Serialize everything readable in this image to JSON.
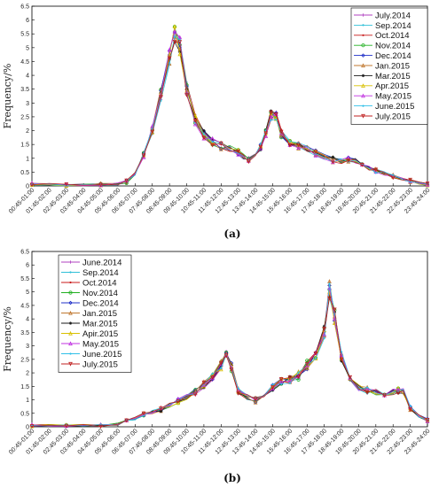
{
  "chart_data": [
    {
      "type": "line",
      "caption": "(a)",
      "ylabel": "Frequency/%",
      "xlabel": "",
      "ylim": [
        0,
        6.5
      ],
      "yticks": [
        0,
        0.5,
        1,
        1.5,
        2,
        2.5,
        3,
        3.5,
        4,
        4.5,
        5,
        5.5,
        6,
        6.5
      ],
      "legend_position": "top-right",
      "grid": false,
      "categories": [
        "00:45-01:00",
        "01:45-02:00",
        "02:45-03:00",
        "03:45-04:00",
        "04:45-05:00",
        "05:45-06:00",
        "06:45-07:00",
        "07:45-08:00",
        "08:45-09:00",
        "09:45-10:00",
        "10:45-11:00",
        "11:45-12:00",
        "12:45-13:00",
        "13:45-14:00",
        "14:45-15:00",
        "15:45-16:00",
        "16:45-17:00",
        "17:45-18:00",
        "18:45-19:00",
        "19:45-20:00",
        "20:45-21:00",
        "21:45-22:00",
        "22:45-23:00",
        "23:45-24:00"
      ],
      "x": [
        0,
        1,
        2,
        3,
        4,
        5,
        5.5,
        6,
        6.5,
        7,
        7.5,
        8,
        8.3,
        8.6,
        9,
        9.5,
        10,
        10.5,
        11,
        11.5,
        12,
        12.3,
        12.6,
        13,
        13.3,
        13.6,
        13.9,
        14.2,
        14.5,
        15,
        15.5,
        16,
        16.5,
        17,
        17.5,
        18,
        18.4,
        18.8,
        19.2,
        19.6,
        20,
        20.5,
        21,
        21.5,
        22,
        22.5,
        23
      ],
      "base": [
        0.07,
        0.05,
        0.04,
        0.04,
        0.05,
        0.07,
        0.15,
        0.45,
        1.1,
        2.0,
        3.3,
        4.7,
        5.55,
        5.1,
        3.5,
        2.4,
        1.85,
        1.6,
        1.45,
        1.35,
        1.2,
        1.05,
        0.95,
        1.1,
        1.4,
        1.9,
        2.55,
        2.5,
        1.9,
        1.6,
        1.45,
        1.35,
        1.2,
        1.05,
        0.95,
        0.9,
        0.95,
        0.9,
        0.75,
        0.65,
        0.55,
        0.45,
        0.35,
        0.25,
        0.18,
        0.1,
        0.05
      ],
      "series": [
        {
          "name": "July.2014",
          "color": "#b040c0",
          "marker": "cross"
        },
        {
          "name": "Sep.2014",
          "color": "#30c0d8",
          "marker": "dot"
        },
        {
          "name": "Oct.2014",
          "color": "#c81818",
          "marker": "dot"
        },
        {
          "name": "Nov.2014",
          "color": "#20b020",
          "marker": "circle"
        },
        {
          "name": "Dec.2014",
          "color": "#2030c8",
          "marker": "diamond"
        },
        {
          "name": "Jan.2015",
          "color": "#c07830",
          "marker": "triangle"
        },
        {
          "name": "Mar.2015",
          "color": "#1a1a1a",
          "marker": "star"
        },
        {
          "name": "Apr.2015",
          "color": "#d8c000",
          "marker": "triangle"
        },
        {
          "name": "May.2015",
          "color": "#c030e0",
          "marker": "triangle"
        },
        {
          "name": "June.2015",
          "color": "#30c0e8",
          "marker": "dot"
        },
        {
          "name": "July.2015",
          "color": "#c02020",
          "marker": "triangle-down"
        }
      ]
    },
    {
      "type": "line",
      "caption": "(b)",
      "ylabel": "Frequency/%",
      "xlabel": "",
      "ylim": [
        0,
        6.5
      ],
      "yticks": [
        0,
        0.5,
        1,
        1.5,
        2,
        2.5,
        3,
        3.5,
        4,
        4.5,
        5,
        5.5,
        6,
        6.5
      ],
      "legend_position": "top-left",
      "grid": false,
      "categories": [
        "00:45-01:00",
        "01:45-02:00",
        "02:45-03:00",
        "03:45-04:00",
        "04:45-05:00",
        "05:45-06:00",
        "06:45-07:00",
        "07:45-08:00",
        "08:45-09:00",
        "09:45-10:00",
        "10:45-11:00",
        "11:45-12:00",
        "12:45-13:00",
        "13:45-14:00",
        "14:45-15:00",
        "15:45-16:00",
        "16:45-17:00",
        "17:45-18:00",
        "18:45-19:00",
        "19:45-20:00",
        "20:45-21:00",
        "21:45-22:00",
        "22:45-23:00",
        "23:45-24:00"
      ],
      "x": [
        0,
        1,
        2,
        3,
        4,
        5,
        5.5,
        6,
        6.5,
        7,
        7.5,
        8,
        8.5,
        9,
        9.5,
        10,
        10.5,
        11,
        11.3,
        11.6,
        12,
        12.5,
        13,
        13.5,
        14,
        14.5,
        15,
        15.5,
        16,
        16.5,
        17,
        17.3,
        17.6,
        18,
        18.5,
        19,
        19.5,
        20,
        20.5,
        21,
        21.3,
        21.6,
        22,
        22.5,
        23
      ],
      "base": [
        0.05,
        0.05,
        0.05,
        0.05,
        0.05,
        0.1,
        0.2,
        0.3,
        0.45,
        0.55,
        0.65,
        0.8,
        0.95,
        1.1,
        1.3,
        1.55,
        1.85,
        2.3,
        2.75,
        2.2,
        1.3,
        1.1,
        1.0,
        1.2,
        1.45,
        1.65,
        1.75,
        1.9,
        2.3,
        2.7,
        3.5,
        5.1,
        4.1,
        2.6,
        1.8,
        1.45,
        1.35,
        1.3,
        1.25,
        1.3,
        1.35,
        1.3,
        0.7,
        0.4,
        0.25
      ],
      "series": [
        {
          "name": "June.2014",
          "color": "#b040c0",
          "marker": "cross"
        },
        {
          "name": "Sep.2014",
          "color": "#30c0d8",
          "marker": "dot"
        },
        {
          "name": "Oct.2014",
          "color": "#c81818",
          "marker": "dot"
        },
        {
          "name": "Nov.2014",
          "color": "#20b020",
          "marker": "circle"
        },
        {
          "name": "Dec.2014",
          "color": "#2030c8",
          "marker": "diamond"
        },
        {
          "name": "Jan.2015",
          "color": "#c07830",
          "marker": "triangle"
        },
        {
          "name": "Mar.2015",
          "color": "#1a1a1a",
          "marker": "star"
        },
        {
          "name": "Apir.2015",
          "color": "#d8c000",
          "marker": "triangle"
        },
        {
          "name": "May.2015",
          "color": "#c030e0",
          "marker": "triangle"
        },
        {
          "name": "June.2015",
          "color": "#30c0e8",
          "marker": "dot"
        },
        {
          "name": "July.2015",
          "color": "#c02020",
          "marker": "triangle-down"
        }
      ]
    }
  ]
}
